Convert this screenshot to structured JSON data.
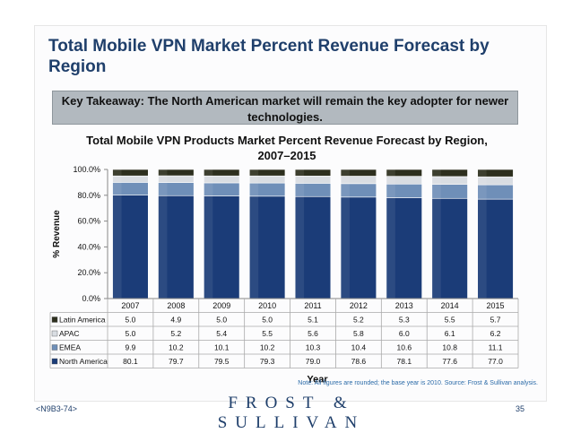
{
  "slide": {
    "title": "Total Mobile VPN Market Percent Revenue Forecast by Region",
    "takeaway": "Key Takeaway: The North American market will remain the key adopter for newer technologies.",
    "note": "Note: All figures are rounded; the base year is 2010. Source: Frost & Sullivan analysis.",
    "footer_code": "<N9B3-74>",
    "footer_logo": "FROST & SULLIVAN",
    "page_number": "35"
  },
  "chart_data": {
    "type": "bar",
    "stacked": true,
    "title": "Total Mobile VPN Products Market Percent Revenue Forecast by Region, 2007–2015",
    "xlabel": "Year",
    "ylabel": "% Revenue",
    "ylim": [
      0,
      100
    ],
    "yticks": [
      "0.0%",
      "20.0%",
      "40.0%",
      "60.0%",
      "80.0%",
      "100.0%"
    ],
    "categories": [
      "2007",
      "2008",
      "2009",
      "2010",
      "2011",
      "2012",
      "2013",
      "2014",
      "2015"
    ],
    "series": [
      {
        "name": "North America",
        "color": "#1b3c78",
        "values": [
          80.1,
          79.7,
          79.5,
          79.3,
          79.0,
          78.6,
          78.1,
          77.6,
          77.0
        ]
      },
      {
        "name": "EMEA",
        "color": "#6f8fb8",
        "values": [
          9.9,
          10.2,
          10.1,
          10.2,
          10.3,
          10.4,
          10.6,
          10.8,
          11.1
        ]
      },
      {
        "name": "APAC",
        "color": "#d9dde2",
        "values": [
          5.0,
          5.2,
          5.4,
          5.5,
          5.6,
          5.8,
          6.0,
          6.1,
          6.2
        ]
      },
      {
        "name": "Latin America",
        "color": "#2d2f1e",
        "values": [
          5.0,
          4.9,
          5.0,
          5.0,
          5.1,
          5.2,
          5.3,
          5.5,
          5.7
        ]
      }
    ],
    "table_rows_order": [
      "Latin America",
      "APAC",
      "EMEA",
      "North America"
    ],
    "grid": false,
    "legend": "data-table"
  }
}
